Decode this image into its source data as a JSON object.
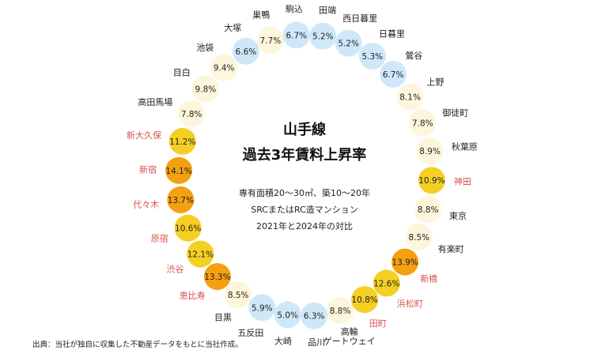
{
  "chart_data": {
    "type": "ring",
    "title_lines": [
      "山手線",
      "過去3年賃料上昇率"
    ],
    "note_lines": [
      "専有面積20～30㎡、築10～20年",
      "SRCまたはRC造マンション",
      "2021年と2024年の対比"
    ],
    "source": "出典：当社が独自に収集した不動産データをもとに当社作成。",
    "unit": "%",
    "legend_bins": [
      {
        "min": 0,
        "max": 7.0,
        "color": "#cfe8f9"
      },
      {
        "min": 7.0,
        "max": 10.0,
        "color": "#fdf6dc"
      },
      {
        "min": 10.0,
        "max": 13.0,
        "color": "#f5cf24"
      },
      {
        "min": 13.0,
        "max": 100,
        "color": "#f4a011"
      }
    ],
    "highlight_label_color": "#d9534f",
    "normal_label_color": "#222222",
    "stations": [
      {
        "name": "駒込",
        "value": 6.7,
        "highlight": false
      },
      {
        "name": "田端",
        "value": 5.2,
        "highlight": false
      },
      {
        "name": "西日暮里",
        "value": 5.2,
        "highlight": false
      },
      {
        "name": "日暮里",
        "value": 5.3,
        "highlight": false
      },
      {
        "name": "鶯谷",
        "value": 6.7,
        "highlight": false
      },
      {
        "name": "上野",
        "value": 8.1,
        "highlight": false
      },
      {
        "name": "御徒町",
        "value": 7.8,
        "highlight": false
      },
      {
        "name": "秋葉原",
        "value": 8.9,
        "highlight": false
      },
      {
        "name": "神田",
        "value": 10.9,
        "highlight": true
      },
      {
        "name": "東京",
        "value": 8.8,
        "highlight": false
      },
      {
        "name": "有楽町",
        "value": 8.5,
        "highlight": false
      },
      {
        "name": "新橋",
        "value": 13.9,
        "highlight": true
      },
      {
        "name": "浜松町",
        "value": 12.6,
        "highlight": true
      },
      {
        "name": "田町",
        "value": 10.8,
        "highlight": true
      },
      {
        "name": "高輪\nゲートウェイ",
        "value": 8.8,
        "highlight": false
      },
      {
        "name": "品川",
        "value": 6.3,
        "highlight": false
      },
      {
        "name": "大崎",
        "value": 5.0,
        "highlight": false
      },
      {
        "name": "五反田",
        "value": 5.9,
        "highlight": false
      },
      {
        "name": "目黒",
        "value": 8.5,
        "highlight": false
      },
      {
        "name": "恵比寿",
        "value": 13.3,
        "highlight": true
      },
      {
        "name": "渋谷",
        "value": 12.1,
        "highlight": true
      },
      {
        "name": "原宿",
        "value": 10.6,
        "highlight": true
      },
      {
        "name": "代々木",
        "value": 13.7,
        "highlight": true
      },
      {
        "name": "新宿",
        "value": 14.1,
        "highlight": true
      },
      {
        "name": "新大久保",
        "value": 11.2,
        "highlight": true
      },
      {
        "name": "高田馬場",
        "value": 7.8,
        "highlight": false
      },
      {
        "name": "目白",
        "value": 9.8,
        "highlight": false
      },
      {
        "name": "池袋",
        "value": 9.4,
        "highlight": false
      },
      {
        "name": "大塚",
        "value": 6.6,
        "highlight": false
      },
      {
        "name": "巣鴨",
        "value": 7.7,
        "highlight": false
      }
    ]
  }
}
